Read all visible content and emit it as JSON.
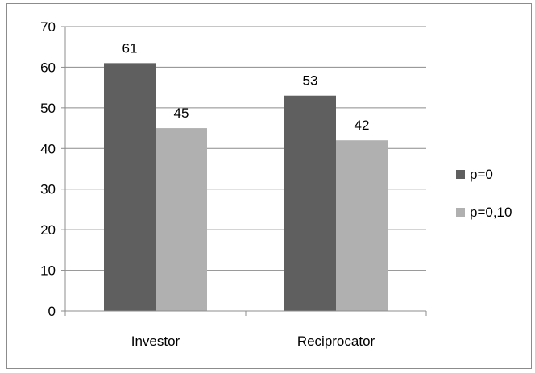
{
  "chart_data": {
    "type": "bar",
    "categories": [
      "Investor",
      "Reciprocator"
    ],
    "series": [
      {
        "name": "p=0",
        "values": [
          61,
          53
        ],
        "color": "#5f5f5f"
      },
      {
        "name": "p=0,10",
        "values": [
          45,
          42
        ],
        "color": "#b0b0b0"
      }
    ],
    "data_labels": [
      [
        "61",
        "53"
      ],
      [
        "45",
        "42"
      ]
    ],
    "y_ticks": [
      "0",
      "10",
      "20",
      "30",
      "40",
      "50",
      "60",
      "70"
    ],
    "ylim": [
      0,
      70
    ],
    "title": "",
    "xlabel": "",
    "ylabel": "",
    "grid": true,
    "legend_position": "right"
  }
}
